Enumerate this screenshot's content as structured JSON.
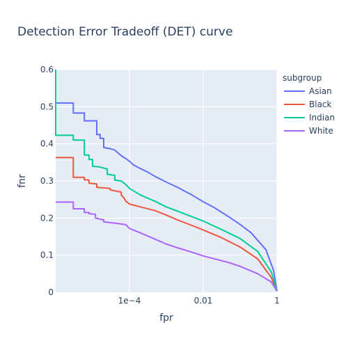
{
  "chart_data": {
    "type": "line",
    "title": "Detection Error Tradeoff (DET) curve",
    "xlabel": "fpr",
    "ylabel": "fnr",
    "xscale": "log",
    "xlim": [
      1e-06,
      1
    ],
    "ylim": [
      0,
      0.6
    ],
    "xticks": [
      {
        "value": 0.0001,
        "label": "1e−4"
      },
      {
        "value": 0.01,
        "label": "0.01"
      },
      {
        "value": 1,
        "label": "1"
      }
    ],
    "yticks": [
      {
        "value": 0,
        "label": "0"
      },
      {
        "value": 0.1,
        "label": "0.1"
      },
      {
        "value": 0.2,
        "label": "0.2"
      },
      {
        "value": 0.3,
        "label": "0.3"
      },
      {
        "value": 0.4,
        "label": "0.4"
      },
      {
        "value": 0.5,
        "label": "0.5"
      },
      {
        "value": 0.6,
        "label": "0.6"
      }
    ],
    "grid": true,
    "legend_title": "subgroup",
    "legend_position": "top-right",
    "series": [
      {
        "name": "Asian",
        "color": "#636efa",
        "points": [
          [
            1e-06,
            0.51
          ],
          [
            3e-06,
            0.51
          ],
          [
            3e-06,
            0.483
          ],
          [
            6e-06,
            0.483
          ],
          [
            6e-06,
            0.462
          ],
          [
            1.3e-05,
            0.462
          ],
          [
            1.3e-05,
            0.425
          ],
          [
            1.6e-05,
            0.425
          ],
          [
            1.6e-05,
            0.415
          ],
          [
            2e-05,
            0.415
          ],
          [
            2e-05,
            0.39
          ],
          [
            3e-05,
            0.387
          ],
          [
            4e-05,
            0.383
          ],
          [
            5e-05,
            0.375
          ],
          [
            6e-05,
            0.368
          ],
          [
            8e-05,
            0.36
          ],
          [
            0.0001,
            0.353
          ],
          [
            0.00013,
            0.343
          ],
          [
            0.0002,
            0.333
          ],
          [
            0.0003,
            0.325
          ],
          [
            0.0005,
            0.312
          ],
          [
            0.001,
            0.297
          ],
          [
            0.002,
            0.283
          ],
          [
            0.005,
            0.262
          ],
          [
            0.01,
            0.244
          ],
          [
            0.02,
            0.228
          ],
          [
            0.05,
            0.203
          ],
          [
            0.1,
            0.183
          ],
          [
            0.2,
            0.16
          ],
          [
            0.5,
            0.115
          ],
          [
            0.8,
            0.06
          ],
          [
            1,
            0.003
          ]
        ]
      },
      {
        "name": "Black",
        "color": "#ef553b",
        "points": [
          [
            1e-06,
            0.363
          ],
          [
            3e-06,
            0.363
          ],
          [
            3e-06,
            0.31
          ],
          [
            6e-06,
            0.31
          ],
          [
            6e-06,
            0.303
          ],
          [
            8e-06,
            0.302
          ],
          [
            8e-06,
            0.294
          ],
          [
            1.3e-05,
            0.292
          ],
          [
            1.3e-05,
            0.283
          ],
          [
            3e-05,
            0.28
          ],
          [
            3e-05,
            0.276
          ],
          [
            6e-05,
            0.27
          ],
          [
            6e-05,
            0.262
          ],
          [
            7e-05,
            0.255
          ],
          [
            8e-05,
            0.245
          ],
          [
            0.0001,
            0.238
          ],
          [
            0.0002,
            0.23
          ],
          [
            0.0005,
            0.22
          ],
          [
            0.001,
            0.208
          ],
          [
            0.002,
            0.195
          ],
          [
            0.005,
            0.18
          ],
          [
            0.01,
            0.168
          ],
          [
            0.03,
            0.148
          ],
          [
            0.1,
            0.122
          ],
          [
            0.3,
            0.09
          ],
          [
            0.7,
            0.04
          ],
          [
            1,
            0.003
          ]
        ]
      },
      {
        "name": "Indian",
        "color": "#00cc96",
        "points": [
          [
            1e-06,
            0.6
          ],
          [
            1e-06,
            0.423
          ],
          [
            3e-06,
            0.423
          ],
          [
            3e-06,
            0.41
          ],
          [
            6e-06,
            0.41
          ],
          [
            6e-06,
            0.37
          ],
          [
            8e-06,
            0.37
          ],
          [
            8e-06,
            0.358
          ],
          [
            1e-05,
            0.358
          ],
          [
            1e-05,
            0.34
          ],
          [
            1.5e-05,
            0.338
          ],
          [
            2.5e-05,
            0.332
          ],
          [
            2.5e-05,
            0.318
          ],
          [
            4e-05,
            0.315
          ],
          [
            4e-05,
            0.302
          ],
          [
            6e-05,
            0.3
          ],
          [
            8e-05,
            0.29
          ],
          [
            0.0001,
            0.28
          ],
          [
            0.0002,
            0.262
          ],
          [
            0.0005,
            0.245
          ],
          [
            0.001,
            0.23
          ],
          [
            0.003,
            0.212
          ],
          [
            0.01,
            0.192
          ],
          [
            0.03,
            0.17
          ],
          [
            0.1,
            0.145
          ],
          [
            0.3,
            0.11
          ],
          [
            0.7,
            0.055
          ],
          [
            1,
            0.003
          ]
        ]
      },
      {
        "name": "White",
        "color": "#ab63fa",
        "points": [
          [
            1e-06,
            0.243
          ],
          [
            3e-06,
            0.243
          ],
          [
            3e-06,
            0.225
          ],
          [
            6e-06,
            0.225
          ],
          [
            6e-06,
            0.215
          ],
          [
            8e-06,
            0.215
          ],
          [
            8e-06,
            0.212
          ],
          [
            1.2e-05,
            0.21
          ],
          [
            1.2e-05,
            0.2
          ],
          [
            2e-05,
            0.195
          ],
          [
            2e-05,
            0.19
          ],
          [
            5e-05,
            0.185
          ],
          [
            8e-05,
            0.182
          ],
          [
            0.0001,
            0.172
          ],
          [
            0.0002,
            0.16
          ],
          [
            0.0005,
            0.143
          ],
          [
            0.001,
            0.13
          ],
          [
            0.002,
            0.12
          ],
          [
            0.005,
            0.108
          ],
          [
            0.01,
            0.098
          ],
          [
            0.05,
            0.08
          ],
          [
            0.1,
            0.07
          ],
          [
            0.3,
            0.05
          ],
          [
            0.7,
            0.028
          ],
          [
            1,
            0.003
          ]
        ]
      }
    ]
  }
}
